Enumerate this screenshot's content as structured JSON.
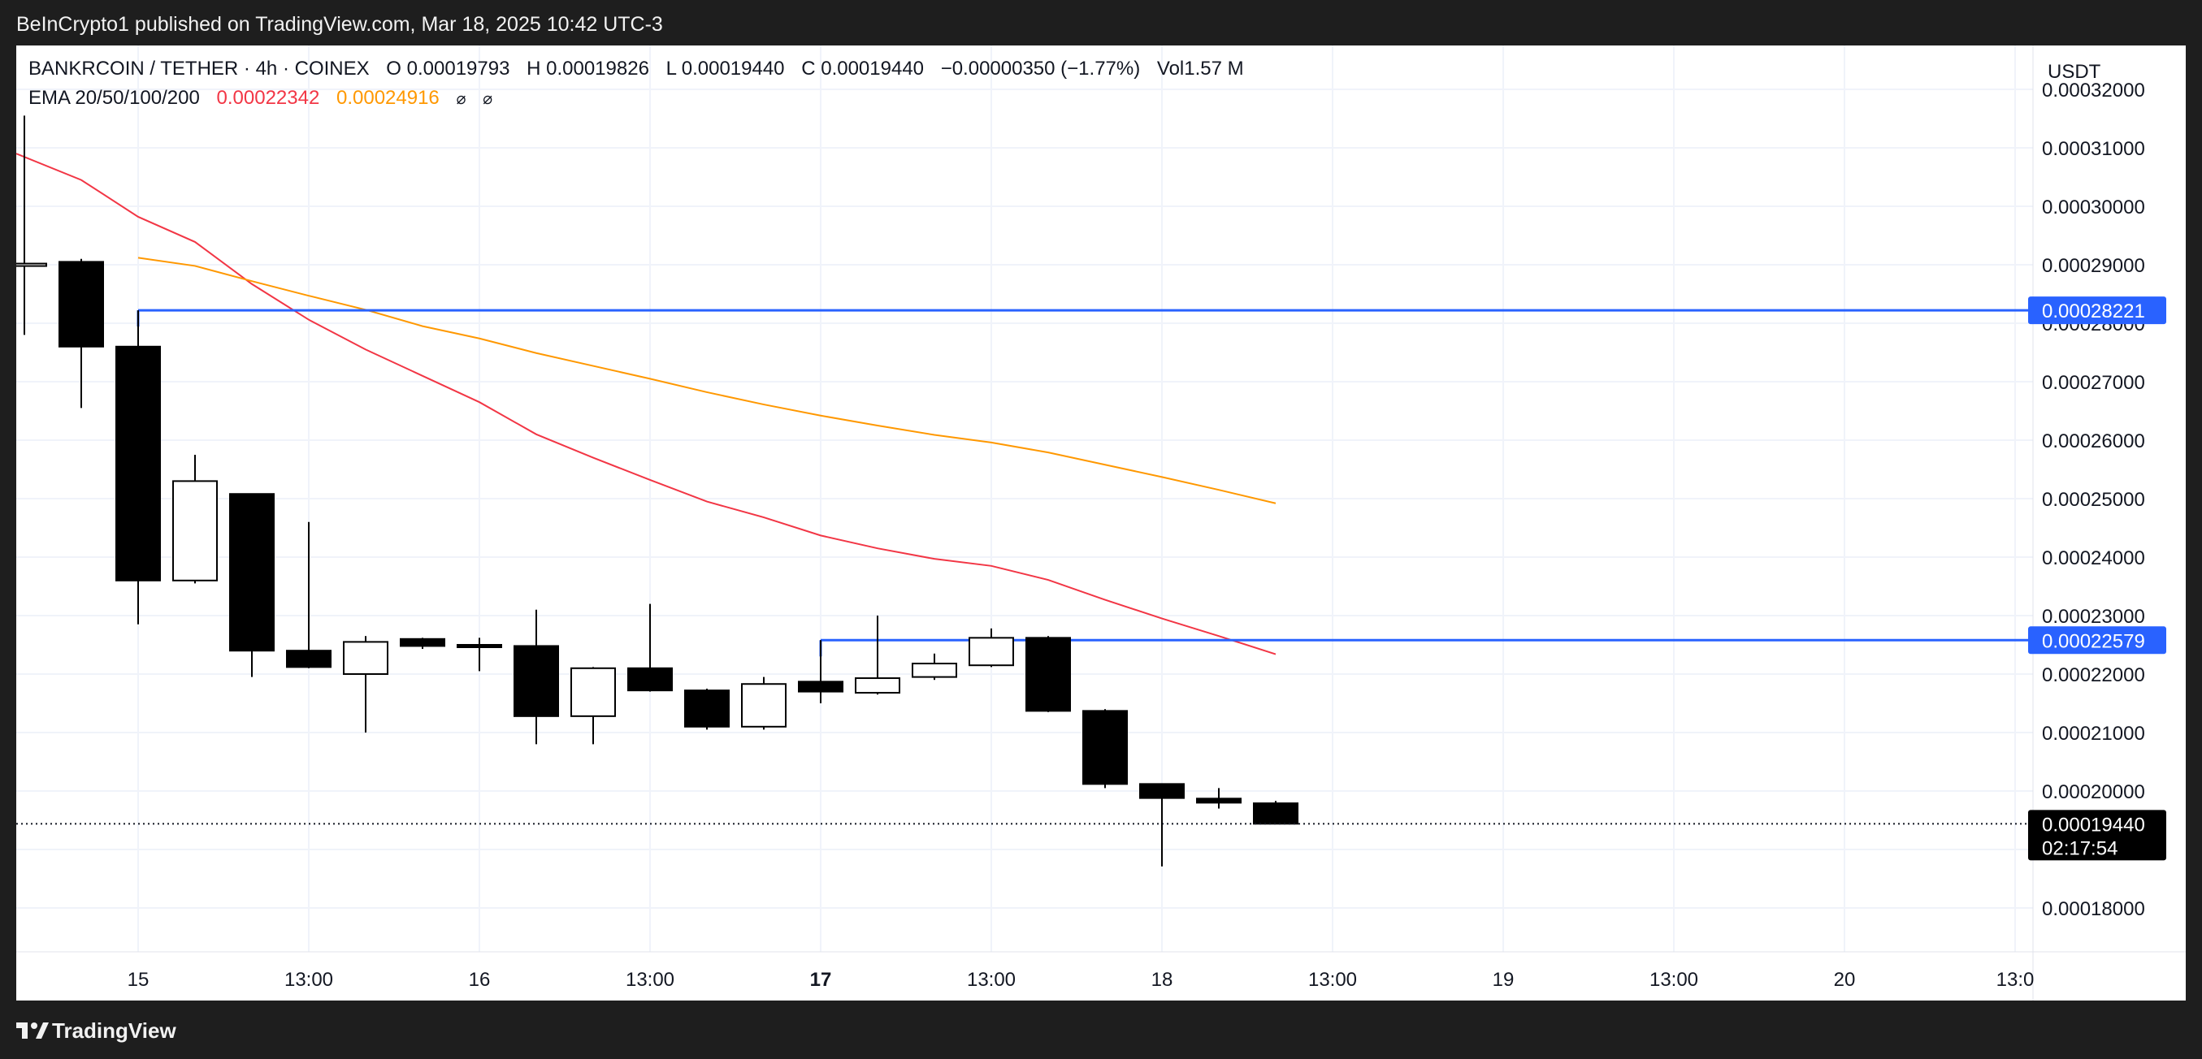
{
  "header": {
    "publisher_text": "BeInCrypto1 published on TradingView.com, Mar 18, 2025 10:42 UTC-3"
  },
  "legend": {
    "symbol": "BANKRCOIN / TETHER · 4h · COINEX",
    "open_label": "O",
    "open_value": "0.00019793",
    "high_label": "H",
    "high_value": "0.00019826",
    "low_label": "L",
    "low_value": "0.00019440",
    "close_label": "C",
    "close_value": "0.00019440",
    "change": "−0.00000350 (−1.77%)",
    "volume": "Vol1.57 M",
    "ema_label": "EMA 20/50/100/200",
    "ema20_value": "0.00022342",
    "ema50_value": "0.00024916",
    "ema100_value": "⌀",
    "ema200_value": "⌀"
  },
  "price_axis": {
    "currency": "USDT",
    "ticks": [
      "0.00032000",
      "0.00031000",
      "0.00030000",
      "0.00029000",
      "0.00028000",
      "0.00027000",
      "0.00026000",
      "0.00025000",
      "0.00024000",
      "0.00023000",
      "0.00022000",
      "0.00021000",
      "0.00020000",
      "0.00018000"
    ]
  },
  "time_axis": {
    "ticks": [
      "15",
      "13:00",
      "16",
      "13:00",
      "17",
      "13:00",
      "18",
      "13:00",
      "19",
      "13:00",
      "20",
      "13:0"
    ]
  },
  "colors": {
    "up_candle": "#ffffff",
    "down_candle": "#000000",
    "ema20": "#f23645",
    "ema50": "#ff9800",
    "levels": "#2962ff",
    "grid": "#f0f3fa"
  },
  "chart_data": {
    "type": "candlestick",
    "title": "BANKRCOIN / TETHER · 4h · COINEX",
    "ylabel": "USDT",
    "ylim": [
      0.0001725,
      0.0003275
    ],
    "candles": [
      {
        "o": 0.00029,
        "h": 0.0003155,
        "l": 0.000278,
        "c": 0.0002902
      },
      {
        "o": 0.0002905,
        "h": 0.000291,
        "l": 0.0002655,
        "c": 0.000276
      },
      {
        "o": 0.000276,
        "h": 0.0002822,
        "l": 0.0002285,
        "c": 0.000236
      },
      {
        "o": 0.000236,
        "h": 0.0002575,
        "l": 0.0002355,
        "c": 0.000253
      },
      {
        "o": 0.0002508,
        "h": 0.0002508,
        "l": 0.0002195,
        "c": 0.000224
      },
      {
        "o": 0.000224,
        "h": 0.000246,
        "l": 0.000221,
        "c": 0.0002212
      },
      {
        "o": 0.00022,
        "h": 0.0002265,
        "l": 0.00021,
        "c": 0.0002255
      },
      {
        "o": 0.000226,
        "h": 0.0002262,
        "l": 0.0002243,
        "c": 0.0002248
      },
      {
        "o": 0.000225,
        "h": 0.0002262,
        "l": 0.0002205,
        "c": 0.0002249
      },
      {
        "o": 0.0002248,
        "h": 0.000231,
        "l": 0.000208,
        "c": 0.0002128
      },
      {
        "o": 0.0002128,
        "h": 0.0002212,
        "l": 0.000208,
        "c": 0.000221
      },
      {
        "o": 0.000221,
        "h": 0.000232,
        "l": 0.000217,
        "c": 0.0002172
      },
      {
        "o": 0.0002172,
        "h": 0.0002175,
        "l": 0.0002105,
        "c": 0.000211
      },
      {
        "o": 0.000211,
        "h": 0.0002195,
        "l": 0.0002105,
        "c": 0.0002183
      },
      {
        "o": 0.0002187,
        "h": 0.0002258,
        "l": 0.000215,
        "c": 0.000217
      },
      {
        "o": 0.0002168,
        "h": 0.00023,
        "l": 0.0002165,
        "c": 0.0002193
      },
      {
        "o": 0.0002195,
        "h": 0.0002235,
        "l": 0.000219,
        "c": 0.0002218
      },
      {
        "o": 0.0002215,
        "h": 0.0002278,
        "l": 0.0002212,
        "c": 0.0002262
      },
      {
        "o": 0.0002262,
        "h": 0.0002265,
        "l": 0.0002135,
        "c": 0.0002137
      },
      {
        "o": 0.0002137,
        "h": 0.000214,
        "l": 0.0002005,
        "c": 0.0002012
      },
      {
        "o": 0.0002012,
        "h": 0.0002012,
        "l": 0.0001871,
        "c": 0.0001988
      },
      {
        "o": 0.0001987,
        "h": 0.0002005,
        "l": 0.000197,
        "c": 0.000198
      },
      {
        "o": 0.0001979,
        "h": 0.0001983,
        "l": 0.0001944,
        "c": 0.0001944
      }
    ],
    "ema20": [
      0.000309,
      0.0003045,
      0.0002982,
      0.0002939,
      0.0002867,
      0.0002806,
      0.0002755,
      0.000271,
      0.0002665,
      0.000261,
      0.000257,
      0.0002532,
      0.0002495,
      0.0002468,
      0.0002437,
      0.0002415,
      0.0002397,
      0.0002385,
      0.0002361,
      0.0002327,
      0.0002295,
      0.0002265,
      0.0002234
    ],
    "ema50": [
      null,
      null,
      0.0002912,
      0.0002898,
      0.0002872,
      0.0002847,
      0.0002823,
      0.0002795,
      0.0002774,
      0.0002749,
      0.0002727,
      0.0002705,
      0.0002682,
      0.0002661,
      0.0002642,
      0.0002625,
      0.0002609,
      0.0002596,
      0.0002579,
      0.0002558,
      0.0002537,
      0.0002515,
      0.0002492
    ],
    "levels": [
      {
        "value": 0.00028221,
        "label": "0.00028221",
        "from_index": 2
      },
      {
        "value": 0.00022579,
        "label": "0.00022579",
        "from_index": 14
      }
    ],
    "last_price": {
      "value": 0.0001944,
      "label": "0.00019440",
      "countdown": "02:17:54"
    }
  }
}
